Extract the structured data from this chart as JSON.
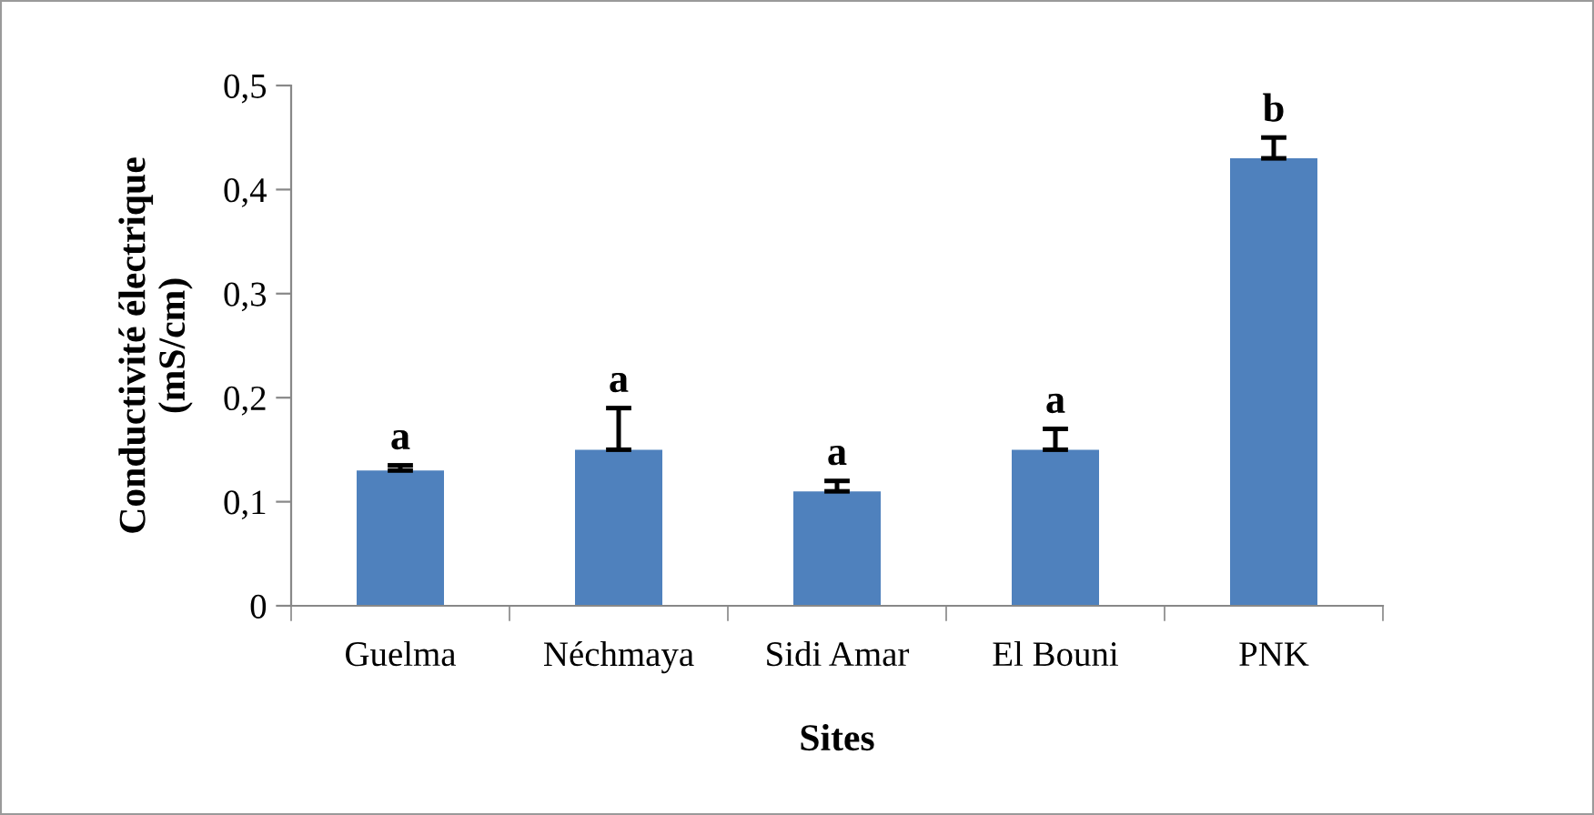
{
  "chart_data": {
    "type": "bar",
    "xlabel": "Sites",
    "ylabel": "Conductivité électrique\n(mS/cm)",
    "categories": [
      "Guelma",
      "Néchmaya",
      "Sidi Amar",
      "El Bouni",
      "PNK"
    ],
    "values": [
      0.13,
      0.15,
      0.11,
      0.15,
      0.43
    ],
    "color": "#4f81bd",
    "errors": [
      [
        0.13,
        0.135
      ],
      [
        0.15,
        0.19
      ],
      [
        0.11,
        0.12
      ],
      [
        0.15,
        0.17
      ],
      [
        0.43,
        0.45
      ]
    ],
    "annotations": [
      {
        "text": "a",
        "x": "Guelma",
        "y": 0.135
      },
      {
        "text": "a",
        "x": "Néchmaya",
        "y": 0.19
      },
      {
        "text": "a",
        "x": "Sidi Amar",
        "y": 0.12
      },
      {
        "text": "a",
        "x": "El Bouni",
        "y": 0.17
      },
      {
        "text": "b",
        "x": "PNK",
        "y": 0.45
      }
    ],
    "ylim": [
      0,
      0.5
    ],
    "yticks": [
      0,
      {
        "value": 0.1,
        "label": "0,1"
      },
      {
        "value": 0.2,
        "label": "0,2"
      },
      {
        "value": 0.3,
        "label": "0,3"
      },
      {
        "value": 0.4,
        "label": "0,4"
      },
      {
        "value": 0.5,
        "label": "0,5"
      }
    ],
    "grid": false,
    "legend": false
  }
}
